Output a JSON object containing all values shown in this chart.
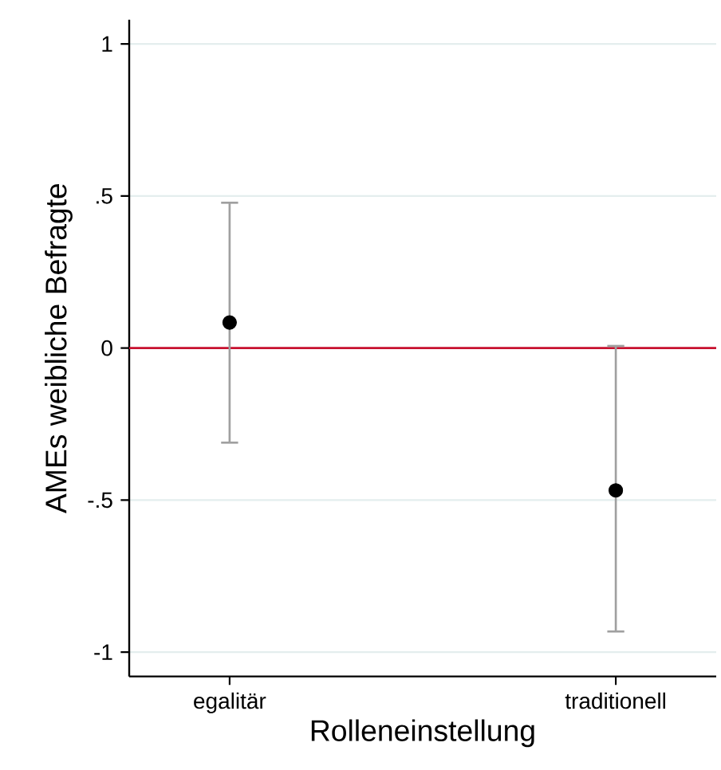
{
  "chart_data": {
    "type": "scatter",
    "xlabel": "Rolleneinstellung",
    "ylabel": "AMEs weibliche Befragte",
    "categories": [
      "egalitär",
      "traditionell"
    ],
    "values": [
      0.084,
      -0.468
    ],
    "errors": [
      [
        -0.311,
        0.478
      ],
      [
        -0.932,
        0.007
      ]
    ],
    "color": "#000000",
    "marker": "circle",
    "grid": "y",
    "ylim": [
      -1.08,
      1.08
    ],
    "yticks": [
      1,
      {
        "value": 0.5,
        "label": ".5"
      },
      0,
      {
        "value": -0.5,
        "label": "-.5"
      },
      -1
    ],
    "ref_lines": [
      {
        "axis": "y",
        "value": 0,
        "color": "#c8102e"
      }
    ]
  }
}
